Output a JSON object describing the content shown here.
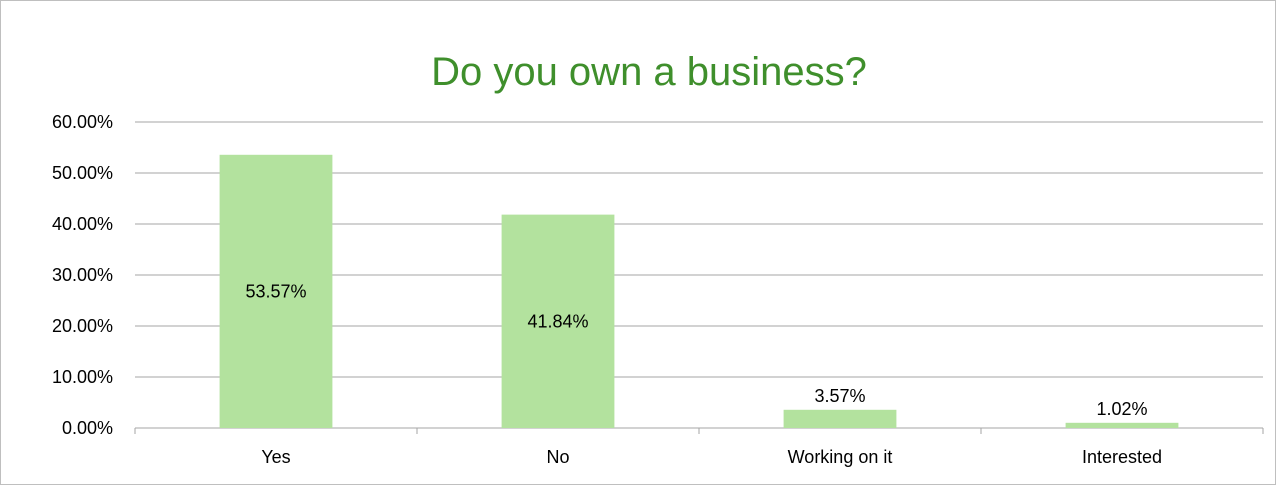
{
  "chart_data": {
    "type": "bar",
    "title": "Do you own a business?",
    "categories": [
      "Yes",
      "No",
      "Working on it",
      "Interested"
    ],
    "values": [
      53.57,
      41.84,
      3.57,
      1.02
    ],
    "data_labels": [
      "53.57%",
      "41.84%",
      "3.57%",
      "1.02%"
    ],
    "ylim": [
      0,
      60
    ],
    "yticks": [
      0,
      10,
      20,
      30,
      40,
      50,
      60
    ],
    "ytick_labels": [
      "0.00%",
      "10.00%",
      "20.00%",
      "30.00%",
      "40.00%",
      "50.00%",
      "60.00%"
    ],
    "xlabel": "",
    "ylabel": "",
    "grid": true,
    "legend": "none",
    "colors": {
      "bar": "#b3e29e",
      "title": "#3f8f2c",
      "grid": "#a6a6a6",
      "axis": "#a6a6a6"
    }
  }
}
